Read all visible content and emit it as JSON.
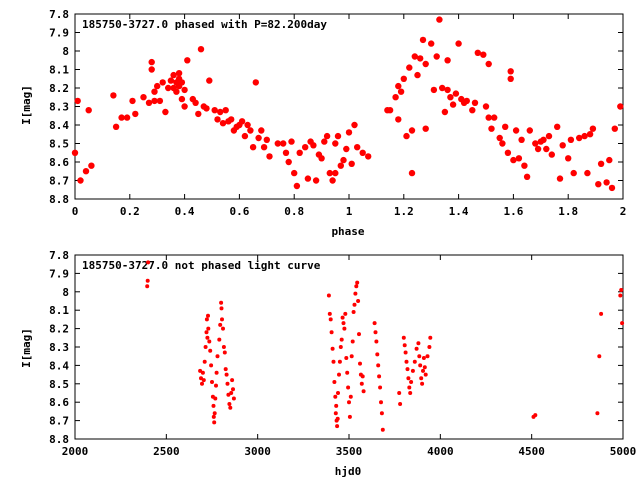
{
  "colors": {
    "point": "#ff0000",
    "axis": "#000000",
    "background": "#ffffff"
  },
  "chart_data": [
    {
      "type": "scatter",
      "title": "185750-3727.0 phased with P=82.200day",
      "xlabel": "phase",
      "ylabel": "I[mag]",
      "xlim": [
        0,
        2
      ],
      "ylim": [
        7.8,
        8.8
      ],
      "y_inverted": true,
      "grid": false,
      "x_ticks": [
        0,
        0.2,
        0.4,
        0.6,
        0.8,
        1,
        1.2,
        1.4,
        1.6,
        1.8,
        2
      ],
      "x_tick_labels": [
        "0",
        "0.2",
        "0.4",
        "0.6",
        "0.8",
        "1",
        "1.2",
        "1.4",
        "1.6",
        "1.8",
        "2"
      ],
      "y_ticks": [
        7.8,
        7.9,
        8,
        8.1,
        8.2,
        8.3,
        8.4,
        8.5,
        8.6,
        8.7,
        8.8
      ],
      "y_tick_labels": [
        "7.8",
        "7.9",
        "8",
        "8.1",
        "8.2",
        "8.3",
        "8.4",
        "8.5",
        "8.6",
        "8.7",
        "8.8"
      ],
      "marker": "filled-circle-large",
      "points": [
        [
          0.0,
          8.55
        ],
        [
          0.01,
          8.27
        ],
        [
          0.02,
          8.7
        ],
        [
          0.04,
          8.65
        ],
        [
          0.05,
          8.32
        ],
        [
          0.06,
          8.62
        ],
        [
          0.14,
          8.24
        ],
        [
          0.15,
          8.41
        ],
        [
          0.17,
          8.36
        ],
        [
          0.19,
          8.36
        ],
        [
          0.21,
          8.27
        ],
        [
          0.22,
          8.34
        ],
        [
          0.25,
          8.25
        ],
        [
          0.27,
          8.28
        ],
        [
          0.28,
          8.06
        ],
        [
          0.28,
          8.1
        ],
        [
          0.29,
          8.22
        ],
        [
          0.29,
          8.27
        ],
        [
          0.3,
          8.19
        ],
        [
          0.31,
          8.27
        ],
        [
          0.32,
          8.17
        ],
        [
          0.33,
          8.33
        ],
        [
          0.34,
          8.2
        ],
        [
          0.35,
          8.16
        ],
        [
          0.36,
          8.13
        ],
        [
          0.36,
          8.2
        ],
        [
          0.37,
          8.17
        ],
        [
          0.37,
          8.22
        ],
        [
          0.38,
          8.19
        ],
        [
          0.38,
          8.12
        ],
        [
          0.38,
          8.15
        ],
        [
          0.39,
          8.17
        ],
        [
          0.39,
          8.26
        ],
        [
          0.4,
          8.3
        ],
        [
          0.4,
          8.21
        ],
        [
          0.41,
          8.05
        ],
        [
          0.43,
          8.26
        ],
        [
          0.44,
          8.28
        ],
        [
          0.45,
          8.34
        ],
        [
          0.46,
          7.99
        ],
        [
          0.47,
          8.3
        ],
        [
          0.48,
          8.31
        ],
        [
          0.49,
          8.16
        ],
        [
          0.51,
          8.32
        ],
        [
          0.52,
          8.37
        ],
        [
          0.53,
          8.33
        ],
        [
          0.54,
          8.39
        ],
        [
          0.55,
          8.32
        ],
        [
          0.56,
          8.38
        ],
        [
          0.57,
          8.37
        ],
        [
          0.58,
          8.43
        ],
        [
          0.59,
          8.41
        ],
        [
          0.6,
          8.4
        ],
        [
          0.61,
          8.38
        ],
        [
          0.62,
          8.46
        ],
        [
          0.63,
          8.4
        ],
        [
          0.64,
          8.43
        ],
        [
          0.65,
          8.52
        ],
        [
          0.66,
          8.17
        ],
        [
          0.67,
          8.47
        ],
        [
          0.68,
          8.43
        ],
        [
          0.69,
          8.52
        ],
        [
          0.7,
          8.48
        ],
        [
          0.71,
          8.57
        ],
        [
          0.74,
          8.5
        ],
        [
          0.76,
          8.5
        ],
        [
          0.77,
          8.55
        ],
        [
          0.78,
          8.6
        ],
        [
          0.79,
          8.49
        ],
        [
          0.8,
          8.66
        ],
        [
          0.81,
          8.73
        ],
        [
          0.82,
          8.55
        ],
        [
          0.84,
          8.52
        ],
        [
          0.85,
          8.69
        ],
        [
          0.86,
          8.49
        ],
        [
          0.87,
          8.51
        ],
        [
          0.88,
          8.7
        ],
        [
          0.89,
          8.56
        ],
        [
          0.9,
          8.58
        ],
        [
          0.91,
          8.49
        ],
        [
          0.92,
          8.46
        ],
        [
          0.93,
          8.66
        ],
        [
          0.94,
          8.7
        ],
        [
          0.95,
          8.5
        ],
        [
          0.95,
          8.66
        ],
        [
          0.96,
          8.46
        ],
        [
          0.97,
          8.62
        ],
        [
          0.98,
          8.59
        ],
        [
          0.99,
          8.53
        ],
        [
          1.0,
          8.44
        ],
        [
          1.01,
          8.61
        ],
        [
          1.02,
          8.4
        ],
        [
          1.03,
          8.52
        ],
        [
          1.05,
          8.55
        ],
        [
          1.07,
          8.57
        ],
        [
          1.14,
          8.32
        ],
        [
          1.15,
          8.32
        ],
        [
          1.17,
          8.25
        ],
        [
          1.18,
          8.19
        ],
        [
          1.18,
          8.37
        ],
        [
          1.19,
          8.22
        ],
        [
          1.2,
          8.15
        ],
        [
          1.21,
          8.46
        ],
        [
          1.22,
          8.09
        ],
        [
          1.23,
          8.66
        ],
        [
          1.23,
          8.43
        ],
        [
          1.24,
          8.03
        ],
        [
          1.25,
          8.13
        ],
        [
          1.26,
          8.04
        ],
        [
          1.27,
          7.94
        ],
        [
          1.28,
          8.07
        ],
        [
          1.28,
          8.42
        ],
        [
          1.3,
          7.96
        ],
        [
          1.31,
          8.21
        ],
        [
          1.32,
          8.03
        ],
        [
          1.33,
          7.83
        ],
        [
          1.34,
          8.2
        ],
        [
          1.35,
          8.33
        ],
        [
          1.36,
          8.21
        ],
        [
          1.36,
          8.05
        ],
        [
          1.37,
          8.25
        ],
        [
          1.38,
          8.29
        ],
        [
          1.39,
          8.23
        ],
        [
          1.4,
          7.96
        ],
        [
          1.41,
          8.26
        ],
        [
          1.42,
          8.28
        ],
        [
          1.43,
          8.27
        ],
        [
          1.45,
          8.32
        ],
        [
          1.46,
          8.28
        ],
        [
          1.47,
          8.01
        ],
        [
          1.49,
          8.02
        ],
        [
          1.5,
          8.3
        ],
        [
          1.51,
          8.36
        ],
        [
          1.51,
          8.07
        ],
        [
          1.52,
          8.42
        ],
        [
          1.53,
          8.36
        ],
        [
          1.55,
          8.47
        ],
        [
          1.56,
          8.5
        ],
        [
          1.57,
          8.41
        ],
        [
          1.58,
          8.55
        ],
        [
          1.59,
          8.11
        ],
        [
          1.59,
          8.15
        ],
        [
          1.6,
          8.59
        ],
        [
          1.61,
          8.43
        ],
        [
          1.62,
          8.58
        ],
        [
          1.63,
          8.48
        ],
        [
          1.64,
          8.62
        ],
        [
          1.65,
          8.68
        ],
        [
          1.66,
          8.43
        ],
        [
          1.68,
          8.5
        ],
        [
          1.69,
          8.53
        ],
        [
          1.7,
          8.49
        ],
        [
          1.71,
          8.48
        ],
        [
          1.72,
          8.53
        ],
        [
          1.73,
          8.46
        ],
        [
          1.74,
          8.56
        ],
        [
          1.76,
          8.41
        ],
        [
          1.77,
          8.69
        ],
        [
          1.78,
          8.51
        ],
        [
          1.8,
          8.58
        ],
        [
          1.81,
          8.48
        ],
        [
          1.82,
          8.66
        ],
        [
          1.84,
          8.47
        ],
        [
          1.86,
          8.46
        ],
        [
          1.87,
          8.66
        ],
        [
          1.88,
          8.45
        ],
        [
          1.89,
          8.42
        ],
        [
          1.91,
          8.72
        ],
        [
          1.92,
          8.61
        ],
        [
          1.94,
          8.71
        ],
        [
          1.95,
          8.59
        ],
        [
          1.96,
          8.74
        ],
        [
          1.97,
          8.42
        ],
        [
          1.99,
          8.3
        ]
      ]
    },
    {
      "type": "scatter",
      "title": "185750-3727.0 not phased light curve",
      "xlabel": "hjd0",
      "ylabel": "I[mag]",
      "xlim": [
        2000,
        5000
      ],
      "ylim": [
        7.8,
        8.8
      ],
      "y_inverted": true,
      "grid": false,
      "x_ticks": [
        2000,
        2500,
        3000,
        3500,
        4000,
        4500,
        5000
      ],
      "x_tick_labels": [
        "2000",
        "2500",
        "3000",
        "3500",
        "4000",
        "4500",
        "5000"
      ],
      "y_ticks": [
        7.8,
        7.9,
        8,
        8.1,
        8.2,
        8.3,
        8.4,
        8.5,
        8.6,
        8.7,
        8.8
      ],
      "y_tick_labels": [
        "7.8",
        "7.9",
        "8",
        "8.1",
        "8.2",
        "8.3",
        "8.4",
        "8.5",
        "8.6",
        "8.7",
        "8.8"
      ],
      "marker": "filled-circle-small",
      "points": [
        [
          2395,
          7.97
        ],
        [
          2398,
          7.94
        ],
        [
          2400,
          7.84
        ],
        [
          2685,
          8.43
        ],
        [
          2690,
          8.47
        ],
        [
          2695,
          8.5
        ],
        [
          2700,
          8.44
        ],
        [
          2705,
          8.48
        ],
        [
          2710,
          8.38
        ],
        [
          2715,
          8.3
        ],
        [
          2720,
          8.22
        ],
        [
          2722,
          8.15
        ],
        [
          2725,
          8.25
        ],
        [
          2728,
          8.13
        ],
        [
          2730,
          8.2
        ],
        [
          2735,
          8.27
        ],
        [
          2740,
          8.32
        ],
        [
          2745,
          8.4
        ],
        [
          2750,
          8.49
        ],
        [
          2755,
          8.57
        ],
        [
          2758,
          8.62
        ],
        [
          2760,
          8.68
        ],
        [
          2762,
          8.71
        ],
        [
          2765,
          8.66
        ],
        [
          2768,
          8.58
        ],
        [
          2772,
          8.51
        ],
        [
          2775,
          8.44
        ],
        [
          2780,
          8.35
        ],
        [
          2790,
          8.26
        ],
        [
          2795,
          8.18
        ],
        [
          2800,
          8.06
        ],
        [
          2802,
          8.09
        ],
        [
          2805,
          8.15
        ],
        [
          2810,
          8.2
        ],
        [
          2815,
          8.3
        ],
        [
          2820,
          8.33
        ],
        [
          2825,
          8.42
        ],
        [
          2830,
          8.45
        ],
        [
          2835,
          8.5
        ],
        [
          2840,
          8.56
        ],
        [
          2845,
          8.61
        ],
        [
          2850,
          8.63
        ],
        [
          2855,
          8.55
        ],
        [
          2860,
          8.48
        ],
        [
          2865,
          8.53
        ],
        [
          2870,
          8.58
        ],
        [
          3390,
          8.02
        ],
        [
          3395,
          8.12
        ],
        [
          3400,
          8.15
        ],
        [
          3405,
          8.22
        ],
        [
          3410,
          8.31
        ],
        [
          3415,
          8.38
        ],
        [
          3420,
          8.49
        ],
        [
          3425,
          8.57
        ],
        [
          3428,
          8.66
        ],
        [
          3430,
          8.62
        ],
        [
          3432,
          8.7
        ],
        [
          3435,
          8.73
        ],
        [
          3438,
          8.69
        ],
        [
          3440,
          8.55
        ],
        [
          3445,
          8.45
        ],
        [
          3450,
          8.38
        ],
        [
          3455,
          8.3
        ],
        [
          3460,
          8.26
        ],
        [
          3465,
          8.14
        ],
        [
          3470,
          8.17
        ],
        [
          3475,
          8.2
        ],
        [
          3480,
          8.12
        ],
        [
          3485,
          8.36
        ],
        [
          3490,
          8.44
        ],
        [
          3495,
          8.52
        ],
        [
          3500,
          8.6
        ],
        [
          3505,
          8.68
        ],
        [
          3510,
          8.57
        ],
        [
          3515,
          8.35
        ],
        [
          3520,
          8.27
        ],
        [
          3525,
          8.11
        ],
        [
          3530,
          8.07
        ],
        [
          3535,
          8.01
        ],
        [
          3540,
          7.97
        ],
        [
          3545,
          7.95
        ],
        [
          3550,
          8.05
        ],
        [
          3555,
          8.23
        ],
        [
          3560,
          8.39
        ],
        [
          3565,
          8.45
        ],
        [
          3570,
          8.5
        ],
        [
          3575,
          8.46
        ],
        [
          3580,
          8.54
        ],
        [
          3640,
          8.17
        ],
        [
          3645,
          8.22
        ],
        [
          3650,
          8.27
        ],
        [
          3655,
          8.34
        ],
        [
          3660,
          8.4
        ],
        [
          3665,
          8.46
        ],
        [
          3670,
          8.52
        ],
        [
          3675,
          8.6
        ],
        [
          3680,
          8.66
        ],
        [
          3685,
          8.75
        ],
        [
          3775,
          8.55
        ],
        [
          3780,
          8.61
        ],
        [
          3800,
          8.25
        ],
        [
          3805,
          8.29
        ],
        [
          3810,
          8.33
        ],
        [
          3815,
          8.38
        ],
        [
          3820,
          8.42
        ],
        [
          3825,
          8.47
        ],
        [
          3830,
          8.52
        ],
        [
          3835,
          8.55
        ],
        [
          3840,
          8.49
        ],
        [
          3850,
          8.43
        ],
        [
          3860,
          8.38
        ],
        [
          3870,
          8.31
        ],
        [
          3880,
          8.28
        ],
        [
          3885,
          8.35
        ],
        [
          3890,
          8.4
        ],
        [
          3895,
          8.47
        ],
        [
          3900,
          8.5
        ],
        [
          3905,
          8.43
        ],
        [
          3910,
          8.36
        ],
        [
          3915,
          8.41
        ],
        [
          3920,
          8.45
        ],
        [
          3930,
          8.35
        ],
        [
          3940,
          8.3
        ],
        [
          3945,
          8.25
        ],
        [
          4510,
          8.68
        ],
        [
          4520,
          8.67
        ],
        [
          4860,
          8.66
        ],
        [
          4870,
          8.35
        ],
        [
          4880,
          8.12
        ],
        [
          4985,
          8.02
        ],
        [
          4990,
          7.99
        ],
        [
          4995,
          8.17
        ]
      ]
    }
  ]
}
